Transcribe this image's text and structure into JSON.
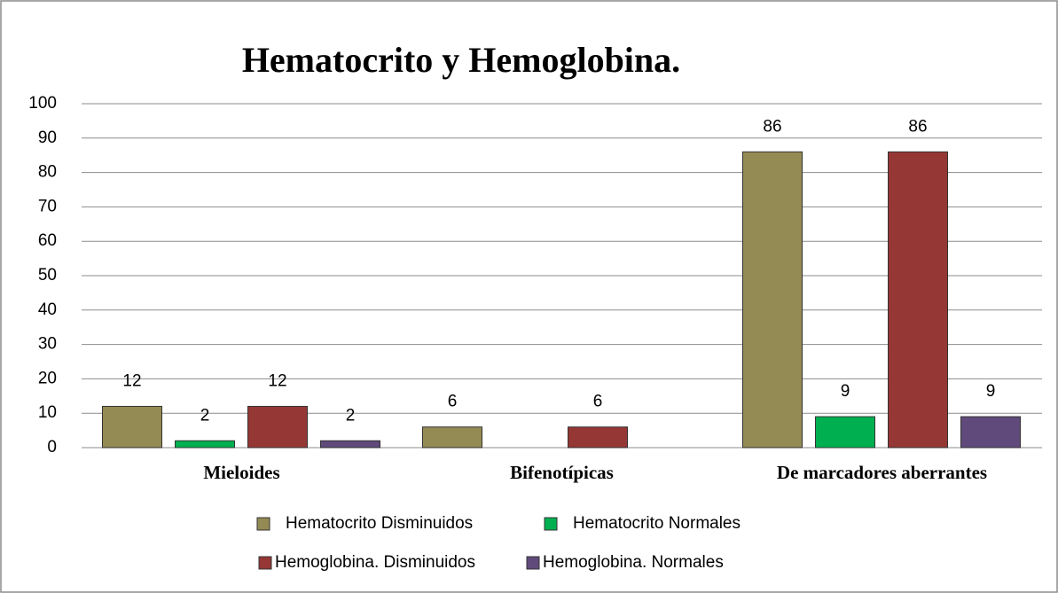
{
  "chart_data": {
    "type": "bar",
    "title": "Hematocrito y Hemoglobina.",
    "categories": [
      "Mieloides",
      "Bifenotípicas",
      "De marcadores aberrantes"
    ],
    "series": [
      {
        "name": "Hematocrito Disminuidos",
        "color": "#948a54",
        "values": [
          12,
          6,
          86
        ]
      },
      {
        "name": "Hematocrito Normales",
        "color": "#00b050",
        "values": [
          2,
          null,
          9
        ]
      },
      {
        "name": "Hemoglobina. Disminuidos",
        "color": "#953735",
        "values": [
          12,
          6,
          86
        ]
      },
      {
        "name": "Hemoglobina. Normales",
        "color": "#604a7b",
        "values": [
          2,
          null,
          9
        ]
      }
    ],
    "ylim": [
      0,
      100
    ],
    "yticks": [
      0,
      10,
      20,
      30,
      40,
      50,
      60,
      70,
      80,
      90,
      100
    ],
    "grid": true,
    "legend": "bottom"
  }
}
